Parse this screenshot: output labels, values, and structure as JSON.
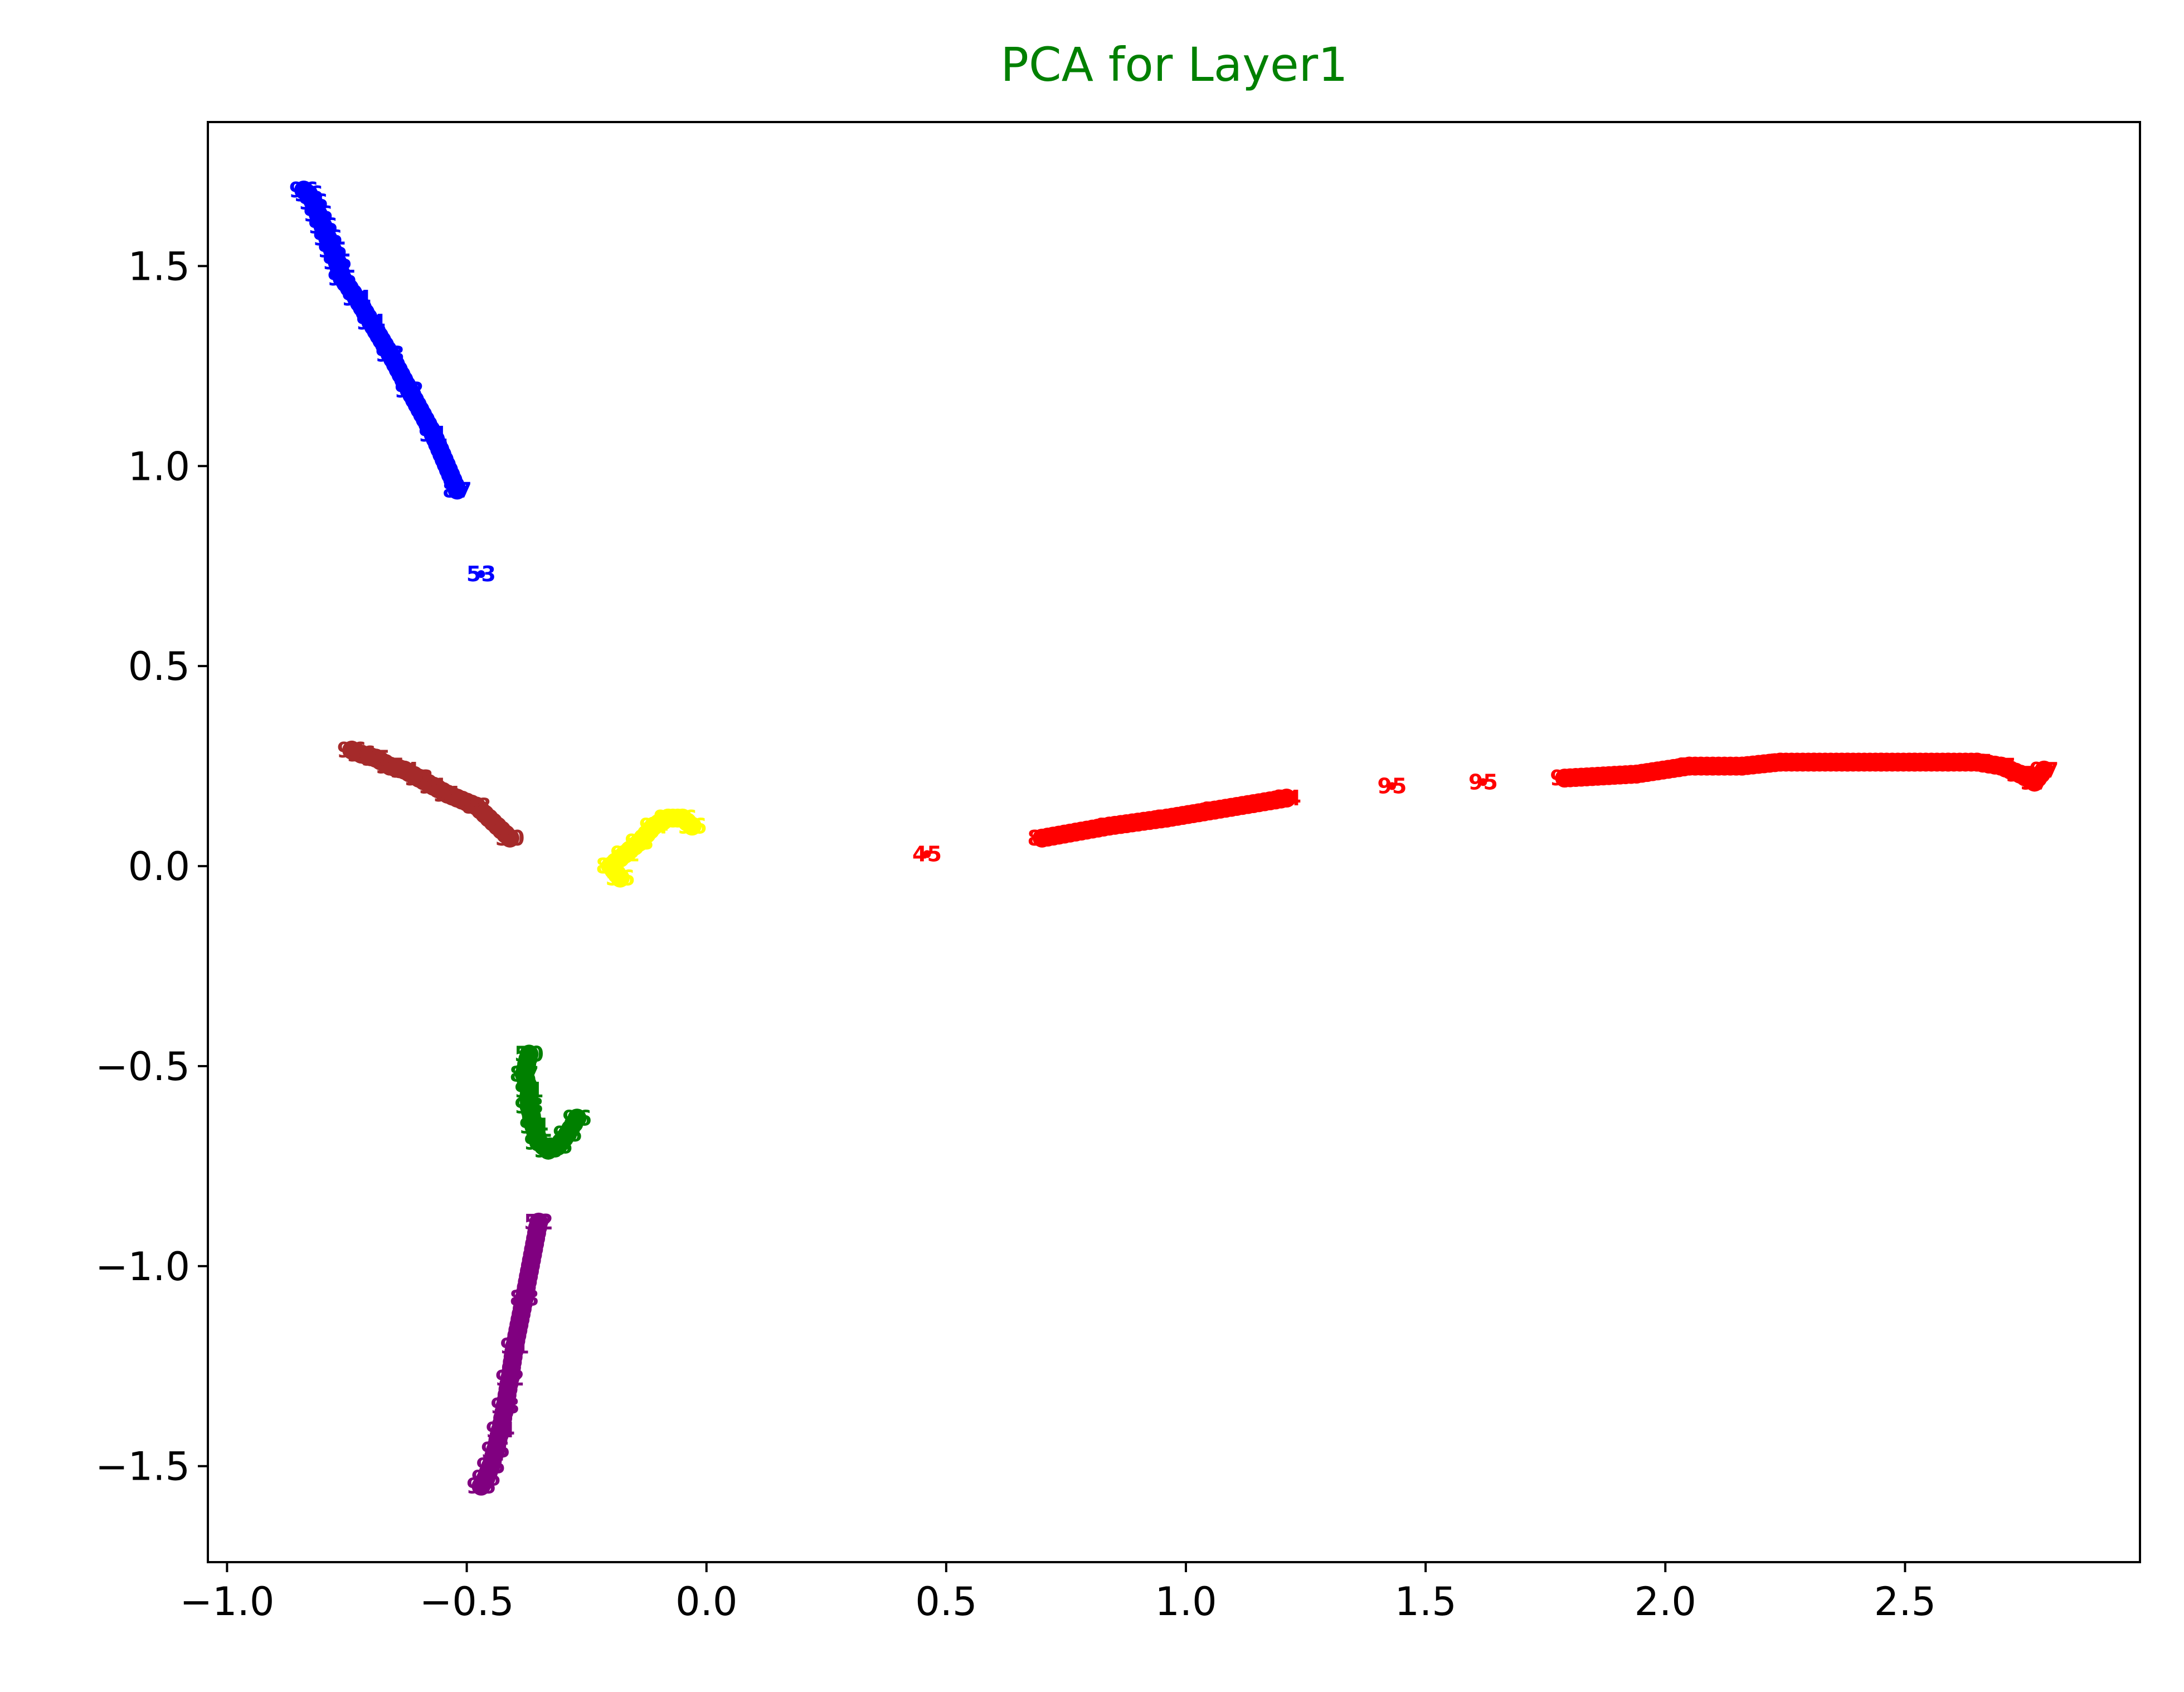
{
  "chart_data": {
    "type": "scatter",
    "title": "PCA for Layer1",
    "title_color": "#008000",
    "xlabel": "",
    "ylabel": "",
    "xlim": [
      -1.04,
      2.99
    ],
    "ylim": [
      -1.74,
      1.86
    ],
    "xticks": [
      -1.0,
      -0.5,
      0.0,
      0.5,
      1.0,
      1.5,
      2.0,
      2.5
    ],
    "xtick_labels": [
      "−1.0",
      "−0.5",
      "0.0",
      "0.5",
      "1.0",
      "1.5",
      "2.0",
      "2.5"
    ],
    "yticks": [
      -1.5,
      -1.0,
      -0.5,
      0.0,
      0.5,
      1.0,
      1.5
    ],
    "ytick_labels": [
      "−1.5",
      "−1.0",
      "−0.5",
      "0.0",
      "0.5",
      "1.0",
      "1.5"
    ],
    "grid": false,
    "series": [
      {
        "color": "#0000ff",
        "points": [
          {
            "x": -0.47,
            "y": 0.73,
            "label": "53"
          },
          {
            "x": -0.52,
            "y": 0.94,
            "label": "87"
          },
          {
            "x": -0.57,
            "y": 1.08,
            "label": "91"
          },
          {
            "x": -0.62,
            "y": 1.19,
            "label": "92"
          },
          {
            "x": -0.66,
            "y": 1.28,
            "label": "93"
          },
          {
            "x": -0.7,
            "y": 1.36,
            "label": "94"
          },
          {
            "x": -0.73,
            "y": 1.42,
            "label": "94"
          },
          {
            "x": -0.76,
            "y": 1.47,
            "label": "95"
          },
          {
            "x": -0.77,
            "y": 1.51,
            "label": "95"
          },
          {
            "x": -0.78,
            "y": 1.54,
            "label": "95"
          },
          {
            "x": -0.79,
            "y": 1.57,
            "label": "96"
          },
          {
            "x": -0.8,
            "y": 1.6,
            "label": "96"
          },
          {
            "x": -0.81,
            "y": 1.63,
            "label": "96"
          },
          {
            "x": -0.82,
            "y": 1.66,
            "label": "96"
          },
          {
            "x": -0.83,
            "y": 1.68,
            "label": "96"
          },
          {
            "x": -0.84,
            "y": 1.69,
            "label": "96"
          }
        ]
      },
      {
        "color": "#a52a2a",
        "points": [
          {
            "x": -0.41,
            "y": 0.07,
            "label": "50"
          },
          {
            "x": -0.48,
            "y": 0.15,
            "label": "88"
          },
          {
            "x": -0.54,
            "y": 0.18,
            "label": "91"
          },
          {
            "x": -0.57,
            "y": 0.2,
            "label": "91"
          },
          {
            "x": -0.6,
            "y": 0.22,
            "label": "93"
          },
          {
            "x": -0.63,
            "y": 0.24,
            "label": "94"
          },
          {
            "x": -0.66,
            "y": 0.25,
            "label": "95"
          },
          {
            "x": -0.69,
            "y": 0.27,
            "label": "95"
          },
          {
            "x": -0.72,
            "y": 0.28,
            "label": "96"
          },
          {
            "x": -0.74,
            "y": 0.29,
            "label": "96"
          }
        ]
      },
      {
        "color": "#ffff00",
        "points": [
          {
            "x": -0.18,
            "y": -0.03,
            "label": "56"
          },
          {
            "x": -0.2,
            "y": 0.0,
            "label": "87"
          },
          {
            "x": -0.17,
            "y": 0.03,
            "label": "91"
          },
          {
            "x": -0.14,
            "y": 0.06,
            "label": "93"
          },
          {
            "x": -0.11,
            "y": 0.1,
            "label": "94"
          },
          {
            "x": -0.08,
            "y": 0.12,
            "label": "95"
          },
          {
            "x": -0.05,
            "y": 0.12,
            "label": "96"
          },
          {
            "x": -0.03,
            "y": 0.1,
            "label": "96"
          }
        ]
      },
      {
        "color": "#ff0000",
        "points": [
          {
            "x": 0.46,
            "y": 0.03,
            "label": "45"
          },
          {
            "x": 0.7,
            "y": 0.07,
            "label": "87"
          },
          {
            "x": 0.84,
            "y": 0.1,
            "label": "91"
          },
          {
            "x": 0.96,
            "y": 0.12,
            "label": "92"
          },
          {
            "x": 1.06,
            "y": 0.14,
            "label": "93"
          },
          {
            "x": 1.21,
            "y": 0.17,
            "label": "94"
          },
          {
            "x": 1.43,
            "y": 0.2,
            "label": "95"
          },
          {
            "x": 1.62,
            "y": 0.21,
            "label": "95"
          },
          {
            "x": 1.79,
            "y": 0.22,
            "label": "96"
          },
          {
            "x": 1.94,
            "y": 0.23,
            "label": "96"
          },
          {
            "x": 2.05,
            "y": 0.25,
            "label": "96"
          },
          {
            "x": 2.16,
            "y": 0.25,
            "label": "96"
          },
          {
            "x": 2.24,
            "y": 0.26,
            "label": "97"
          },
          {
            "x": 2.31,
            "y": 0.26,
            "label": "97"
          },
          {
            "x": 2.38,
            "y": 0.26,
            "label": "97"
          },
          {
            "x": 2.45,
            "y": 0.26,
            "label": "97"
          },
          {
            "x": 2.52,
            "y": 0.26,
            "label": "97"
          },
          {
            "x": 2.59,
            "y": 0.26,
            "label": "97"
          },
          {
            "x": 2.65,
            "y": 0.26,
            "label": "97"
          },
          {
            "x": 2.7,
            "y": 0.25,
            "label": "97"
          },
          {
            "x": 2.74,
            "y": 0.23,
            "label": "97"
          },
          {
            "x": 2.77,
            "y": 0.21,
            "label": "97"
          },
          {
            "x": 2.79,
            "y": 0.24,
            "label": "97"
          }
        ]
      },
      {
        "color": "#008000",
        "points": [
          {
            "x": -0.37,
            "y": -0.47,
            "label": "50"
          },
          {
            "x": -0.38,
            "y": -0.52,
            "label": "87"
          },
          {
            "x": -0.37,
            "y": -0.56,
            "label": "91"
          },
          {
            "x": -0.37,
            "y": -0.6,
            "label": "93"
          },
          {
            "x": -0.36,
            "y": -0.65,
            "label": "94"
          },
          {
            "x": -0.35,
            "y": -0.69,
            "label": "95"
          },
          {
            "x": -0.33,
            "y": -0.71,
            "label": "95"
          },
          {
            "x": -0.31,
            "y": -0.7,
            "label": "96"
          },
          {
            "x": -0.29,
            "y": -0.67,
            "label": "96"
          },
          {
            "x": -0.27,
            "y": -0.63,
            "label": "96"
          }
        ]
      },
      {
        "color": "#800080",
        "points": [
          {
            "x": -0.35,
            "y": -0.89,
            "label": "52"
          },
          {
            "x": -0.38,
            "y": -1.08,
            "label": "88"
          },
          {
            "x": -0.4,
            "y": -1.2,
            "label": "91"
          },
          {
            "x": -0.41,
            "y": -1.28,
            "label": "92"
          },
          {
            "x": -0.42,
            "y": -1.35,
            "label": "93"
          },
          {
            "x": -0.43,
            "y": -1.41,
            "label": "94"
          },
          {
            "x": -0.44,
            "y": -1.46,
            "label": "95"
          },
          {
            "x": -0.45,
            "y": -1.5,
            "label": "95"
          },
          {
            "x": -0.46,
            "y": -1.53,
            "label": "96"
          },
          {
            "x": -0.47,
            "y": -1.55,
            "label": "96"
          }
        ]
      }
    ]
  }
}
